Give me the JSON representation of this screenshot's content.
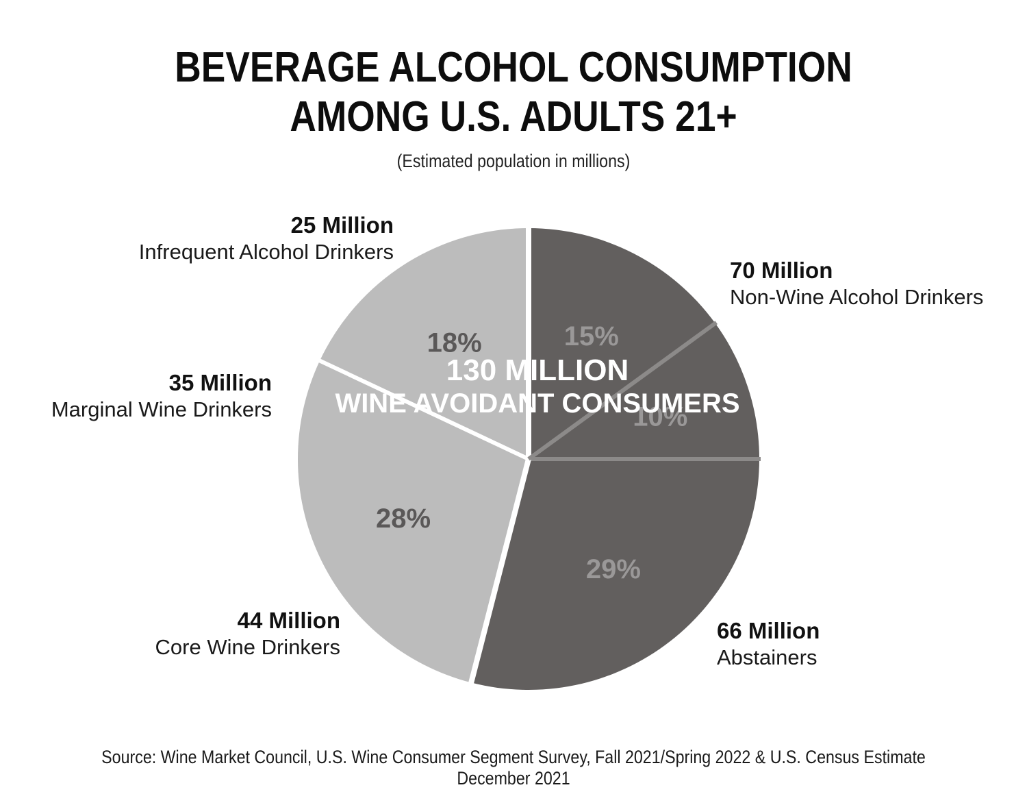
{
  "title_line1": "BEVERAGE  ALCOHOL CONSUMPTION",
  "title_line2": "AMONG U.S. ADULTS 21+",
  "subtitle": "(Estimated population in millions)",
  "center_label": {
    "line1": "130 MILLION",
    "line2": "WINE AVOIDANT CONSUMERS"
  },
  "source": "Source: Wine Market Council, U.S. Wine Consumer Segment Survey, Fall 2021/Spring 2022 & U.S. Census Estimate December 2021",
  "colors": {
    "avoidant": "#625f5e",
    "drinker": "#bcbcbc",
    "avoidant_pct": "#9a9898",
    "drinker_pct": "#5a5858"
  },
  "chart_data": {
    "type": "pie",
    "title": "BEVERAGE ALCOHOL CONSUMPTION AMONG U.S. ADULTS 21+",
    "subtitle": "(Estimated population in millions)",
    "slices": [
      {
        "name": "Non-Wine Alcohol Drinkers",
        "value_label": "70 Million",
        "value": 70,
        "percent": 29,
        "percent_label": "29%",
        "group": "avoidant"
      },
      {
        "name": "Abstainers",
        "value_label": "66 Million",
        "value": 66,
        "percent": 28,
        "percent_label": "28%",
        "group": "drinker"
      },
      {
        "name": "Core Wine Drinkers",
        "value_label": "44 Million",
        "value": 44,
        "percent": 18,
        "percent_label": "18%",
        "group": "drinker"
      },
      {
        "name": "Marginal Wine Drinkers",
        "value_label": "35 Million",
        "value": 35,
        "percent": 15,
        "percent_label": "15%",
        "group": "avoidant"
      },
      {
        "name": "Infrequent Alcohol Drinkers",
        "value_label": "25 Million",
        "value": 25,
        "percent": 10,
        "percent_label": "10%",
        "group": "avoidant"
      }
    ]
  }
}
